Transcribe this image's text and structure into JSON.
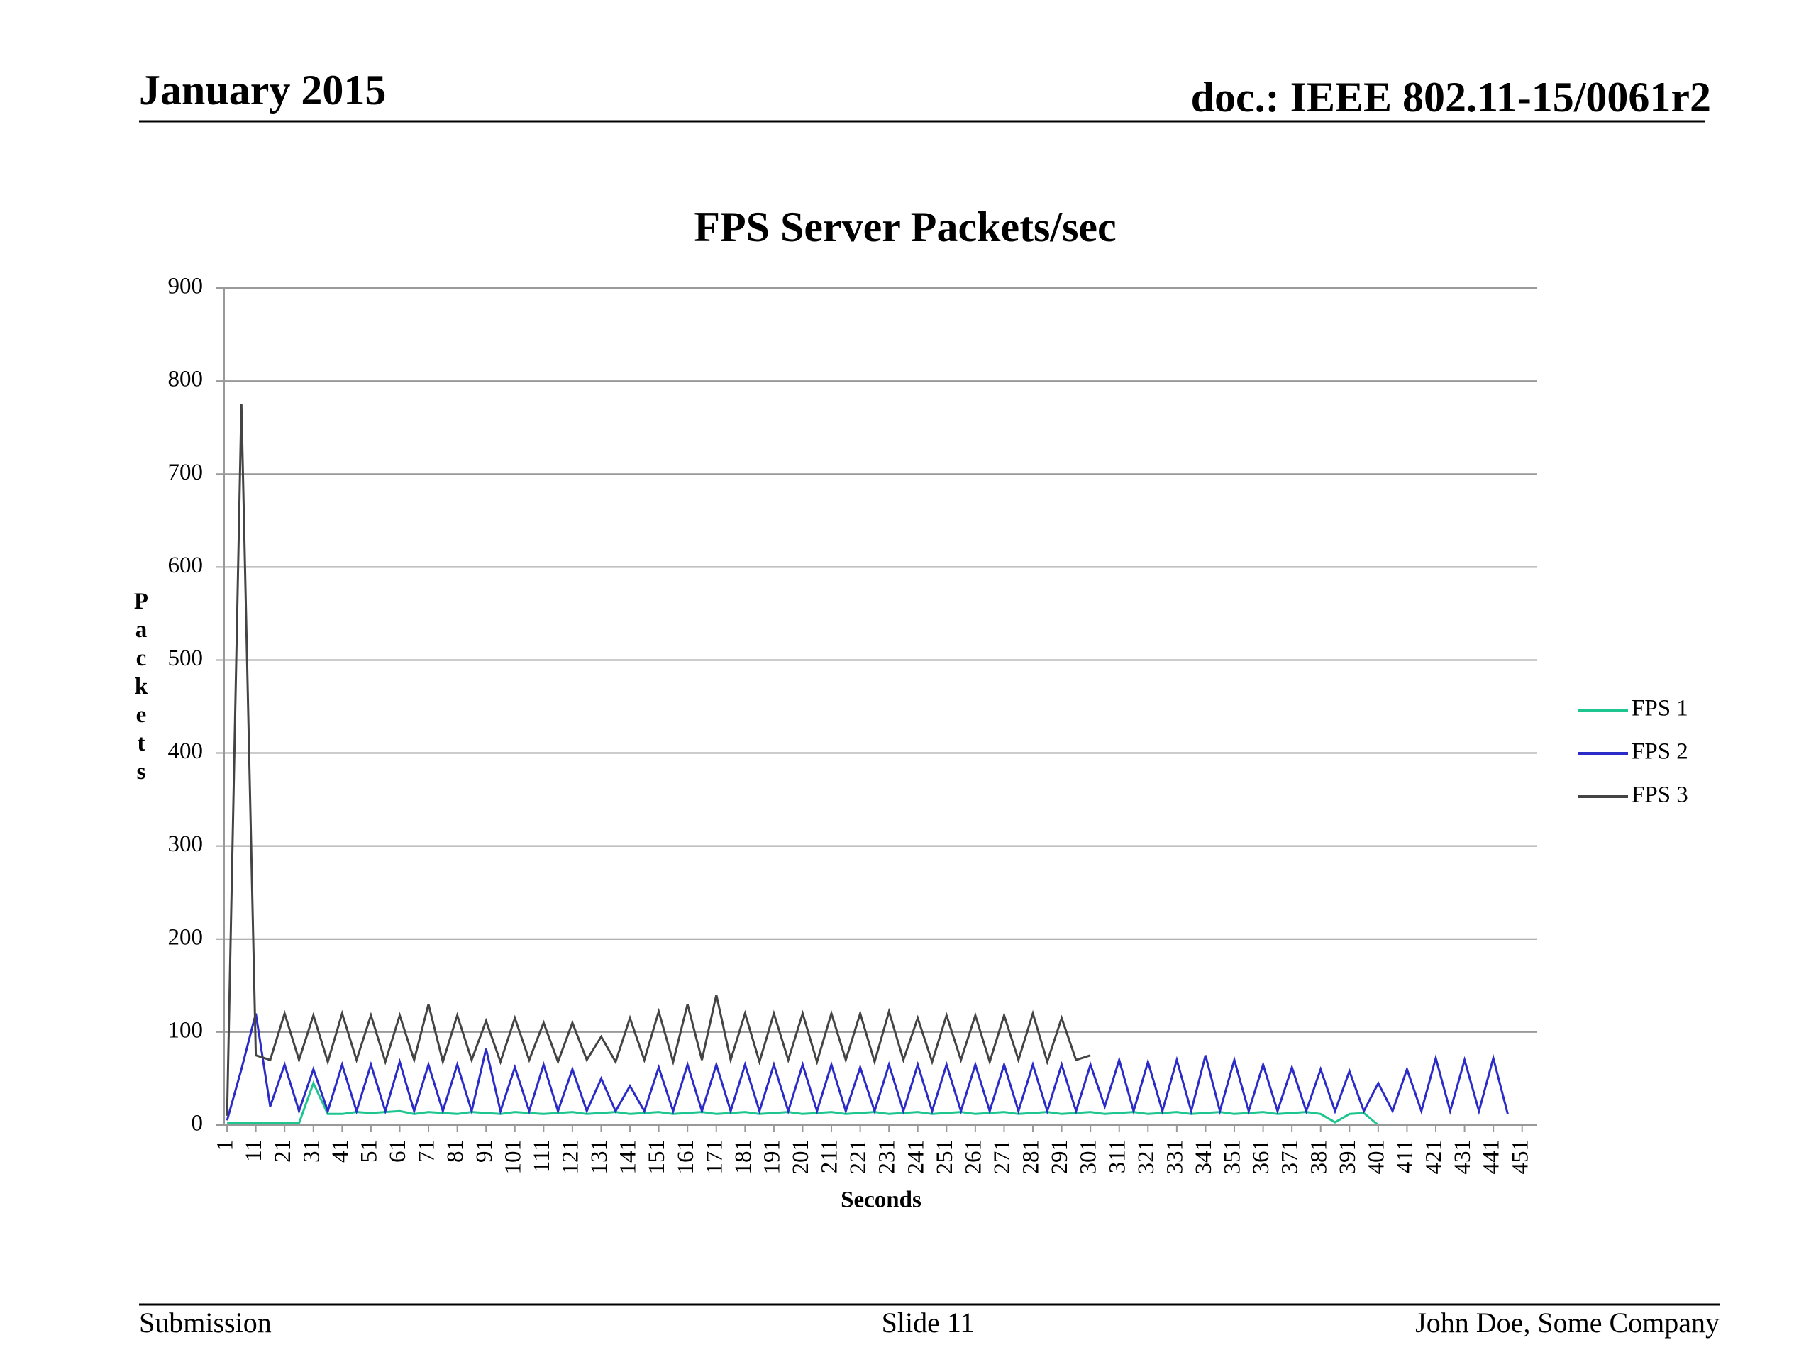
{
  "header": {
    "left": "January 2015",
    "right": "doc.: IEEE 802.11-15/0061r2"
  },
  "footer": {
    "left": "Submission",
    "center": "Slide 11",
    "right": "John Doe, Some Company"
  },
  "chart_data": {
    "type": "line",
    "title": "FPS Server Packets/sec",
    "x_label": "Seconds",
    "y_label": "Packets",
    "x": [
      1,
      6,
      11,
      16,
      21,
      26,
      31,
      36,
      41,
      46,
      51,
      56,
      61,
      66,
      71,
      76,
      81,
      86,
      91,
      96,
      101,
      106,
      111,
      116,
      121,
      126,
      131,
      136,
      141,
      146,
      151,
      156,
      161,
      166,
      171,
      176,
      181,
      186,
      191,
      196,
      201,
      206,
      211,
      216,
      221,
      226,
      231,
      236,
      241,
      246,
      251,
      256,
      261,
      266,
      271,
      276,
      281,
      286,
      291,
      296,
      301,
      306,
      311,
      316,
      321,
      326,
      331,
      336,
      341,
      346,
      351,
      356,
      361,
      366,
      371,
      376,
      381,
      386,
      391,
      396,
      401,
      406,
      411,
      416,
      421,
      426,
      431,
      436,
      441,
      446,
      451
    ],
    "series": [
      {
        "name": "FPS 1",
        "color": "#1fc58f",
        "values": [
          2,
          2,
          2,
          2,
          2,
          2,
          45,
          12,
          12,
          14,
          13,
          14,
          15,
          12,
          14,
          13,
          12,
          14,
          13,
          12,
          14,
          13,
          12,
          13,
          14,
          12,
          13,
          14,
          12,
          13,
          14,
          12,
          13,
          14,
          12,
          13,
          14,
          12,
          13,
          14,
          12,
          13,
          14,
          12,
          13,
          14,
          12,
          13,
          14,
          12,
          13,
          14,
          12,
          13,
          14,
          12,
          13,
          14,
          12,
          13,
          14,
          12,
          13,
          14,
          12,
          13,
          14,
          12,
          13,
          14,
          12,
          13,
          14,
          12,
          13,
          14,
          12,
          3,
          12,
          13,
          0,
          null,
          null,
          null,
          null,
          null,
          null,
          null,
          null,
          null,
          null
        ]
      },
      {
        "name": "FPS 2",
        "color": "#2b2bc8",
        "values": [
          5,
          60,
          120,
          20,
          65,
          15,
          60,
          15,
          65,
          15,
          65,
          15,
          68,
          15,
          65,
          15,
          65,
          15,
          82,
          15,
          62,
          15,
          65,
          15,
          60,
          15,
          50,
          15,
          42,
          15,
          62,
          15,
          65,
          15,
          65,
          15,
          65,
          15,
          65,
          15,
          65,
          15,
          65,
          15,
          62,
          15,
          65,
          15,
          65,
          15,
          65,
          15,
          65,
          15,
          65,
          15,
          65,
          15,
          65,
          15,
          65,
          20,
          70,
          15,
          68,
          15,
          70,
          15,
          75,
          15,
          70,
          15,
          65,
          15,
          62,
          15,
          60,
          15,
          58,
          15,
          45,
          15,
          60,
          15,
          72,
          15,
          70,
          15,
          72,
          12,
          null
        ]
      },
      {
        "name": "FPS 3",
        "color": "#444444",
        "values": [
          10,
          775,
          75,
          70,
          120,
          70,
          118,
          68,
          120,
          70,
          118,
          68,
          118,
          70,
          130,
          68,
          118,
          70,
          112,
          68,
          115,
          70,
          110,
          68,
          110,
          70,
          95,
          68,
          115,
          70,
          122,
          68,
          130,
          70,
          140,
          70,
          120,
          68,
          120,
          70,
          120,
          68,
          120,
          70,
          120,
          68,
          122,
          70,
          115,
          68,
          118,
          70,
          118,
          68,
          118,
          70,
          120,
          68,
          115,
          70,
          75,
          null,
          null,
          null,
          null,
          null,
          null,
          null,
          null,
          null,
          null,
          null,
          null,
          null,
          null,
          null,
          null,
          null,
          null,
          null,
          null,
          null,
          null,
          null,
          null,
          null,
          null,
          null,
          null,
          null,
          null
        ]
      }
    ],
    "xlim": [
      0,
      456
    ],
    "xticks": [
      1,
      11,
      21,
      31,
      41,
      51,
      61,
      71,
      81,
      91,
      101,
      111,
      121,
      131,
      141,
      151,
      161,
      171,
      181,
      191,
      201,
      211,
      221,
      231,
      241,
      251,
      261,
      271,
      281,
      291,
      301,
      311,
      321,
      331,
      341,
      351,
      361,
      371,
      381,
      391,
      401,
      411,
      421,
      431,
      441,
      451
    ],
    "ylim": [
      0,
      900
    ],
    "yticks": [
      0,
      100,
      200,
      300,
      400,
      500,
      600,
      700,
      800,
      900
    ],
    "grid": true,
    "legend": "right"
  }
}
